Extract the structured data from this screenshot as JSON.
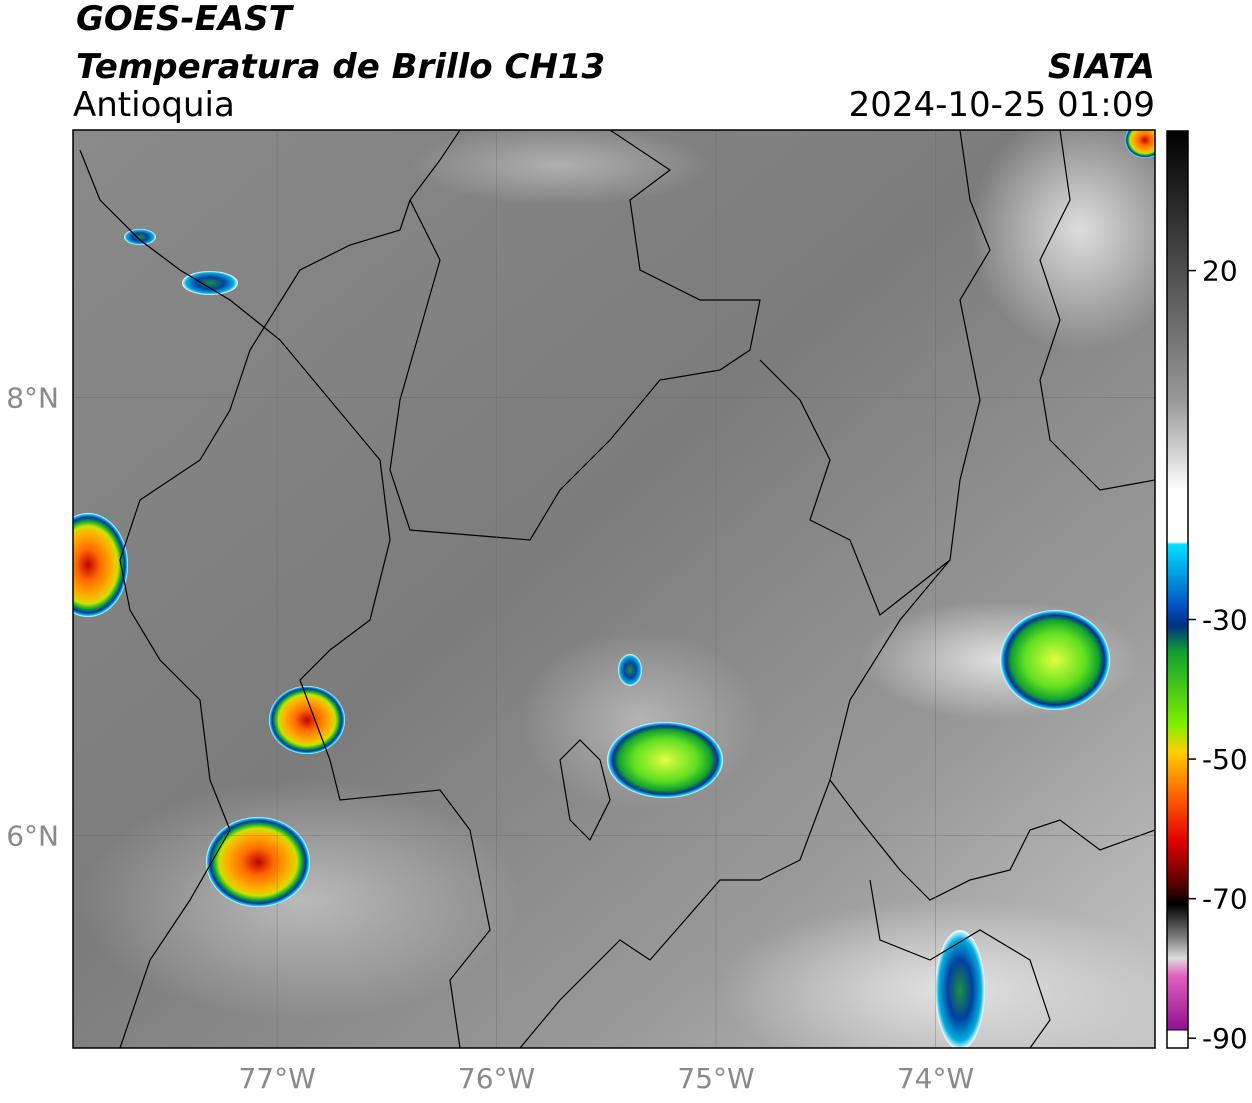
{
  "header": {
    "title": "GOES-EAST",
    "subtitle": "Temperatura de Brillo CH13",
    "region": "Antioquia",
    "source": "SIATA",
    "timestamp": "2024-10-25 01:09"
  },
  "map": {
    "xlim": [
      -77.93,
      -73.0
    ],
    "ylim": [
      5.03,
      9.22
    ],
    "xticks": [
      {
        "value": -77,
        "label": "77°W"
      },
      {
        "value": -76,
        "label": "76°W"
      },
      {
        "value": -75,
        "label": "75°W"
      },
      {
        "value": -74,
        "label": "74°W"
      }
    ],
    "yticks": [
      {
        "value": 6,
        "label": "6°N"
      },
      {
        "value": 8,
        "label": "8°N"
      }
    ],
    "grid": true
  },
  "colorbar": {
    "lim": [
      -91.4,
      40
    ],
    "ticks": [
      20,
      -30,
      -50,
      -70,
      -90
    ]
  }
}
